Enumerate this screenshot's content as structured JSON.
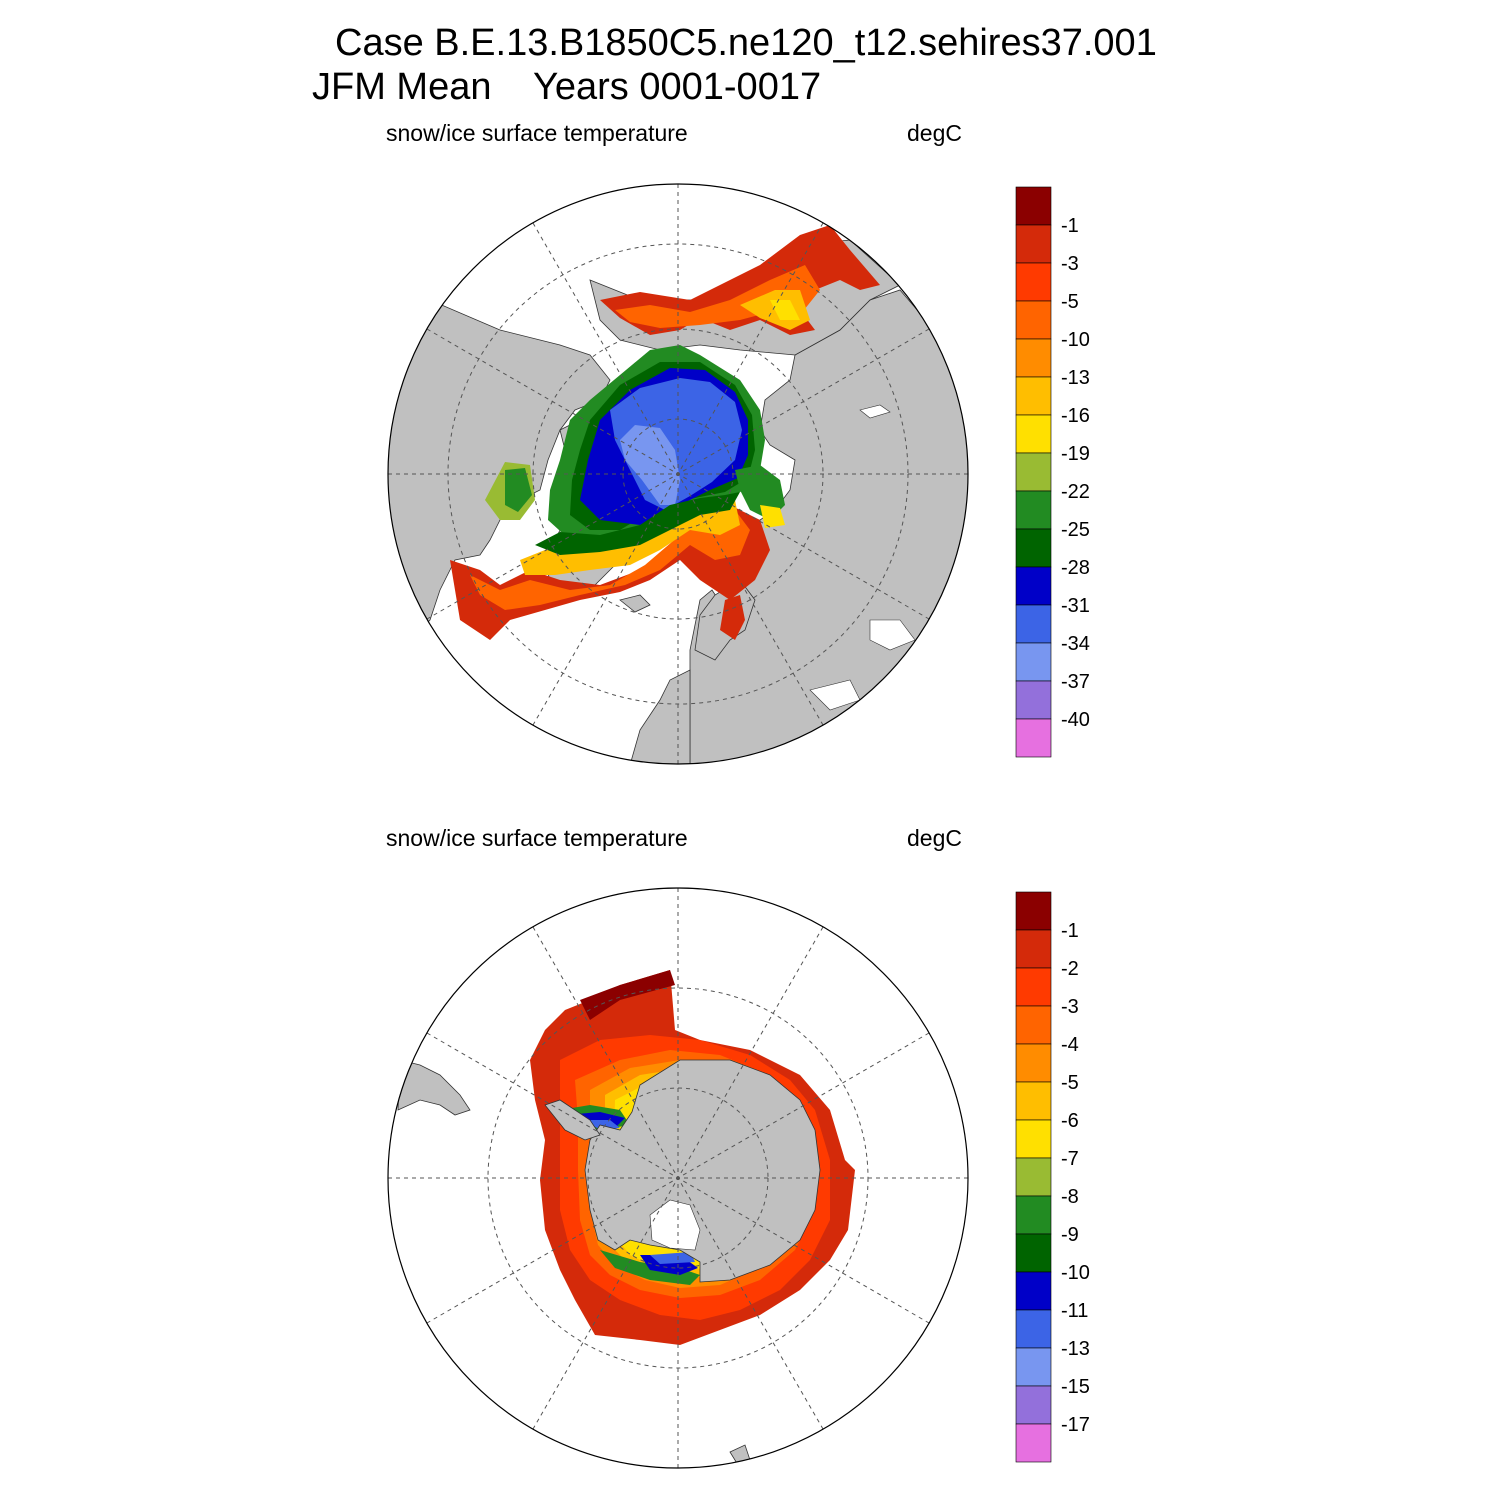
{
  "header": {
    "line1": "Case B.E.13.B1850C5.ne120_t12.sehires37.001",
    "line2_season": "JFM Mean",
    "line2_years": "Years 0001-0017"
  },
  "north": {
    "variable": "snow/ice surface temperature",
    "units": "degC",
    "colorbar": {
      "colors": [
        "#8b0000",
        "#d42a0a",
        "#ff3a00",
        "#ff6400",
        "#ff8c00",
        "#ffbe00",
        "#ffe000",
        "#99bb33",
        "#228b22",
        "#006400",
        "#0000c8",
        "#3c64e6",
        "#7896f0",
        "#9370db",
        "#e670e0"
      ],
      "labels": [
        "-1",
        "-3",
        "-5",
        "-10",
        "-13",
        "-16",
        "-19",
        "-22",
        "-25",
        "-28",
        "-31",
        "-34",
        "-37",
        "-40"
      ]
    }
  },
  "south": {
    "variable": "snow/ice surface temperature",
    "units": "degC",
    "colorbar": {
      "colors": [
        "#8b0000",
        "#d42a0a",
        "#ff3a00",
        "#ff6400",
        "#ff8c00",
        "#ffbe00",
        "#ffe000",
        "#99bb33",
        "#228b22",
        "#006400",
        "#0000c8",
        "#3c64e6",
        "#7896f0",
        "#9370db",
        "#e670e0"
      ],
      "labels": [
        "-1",
        "-2",
        "-3",
        "-4",
        "-5",
        "-6",
        "-7",
        "-8",
        "-9",
        "-10",
        "-11",
        "-13",
        "-15",
        "-17"
      ]
    }
  },
  "colors": {
    "land": "#c0c0c0",
    "ocean": "#ffffff",
    "grid": "#555555"
  }
}
